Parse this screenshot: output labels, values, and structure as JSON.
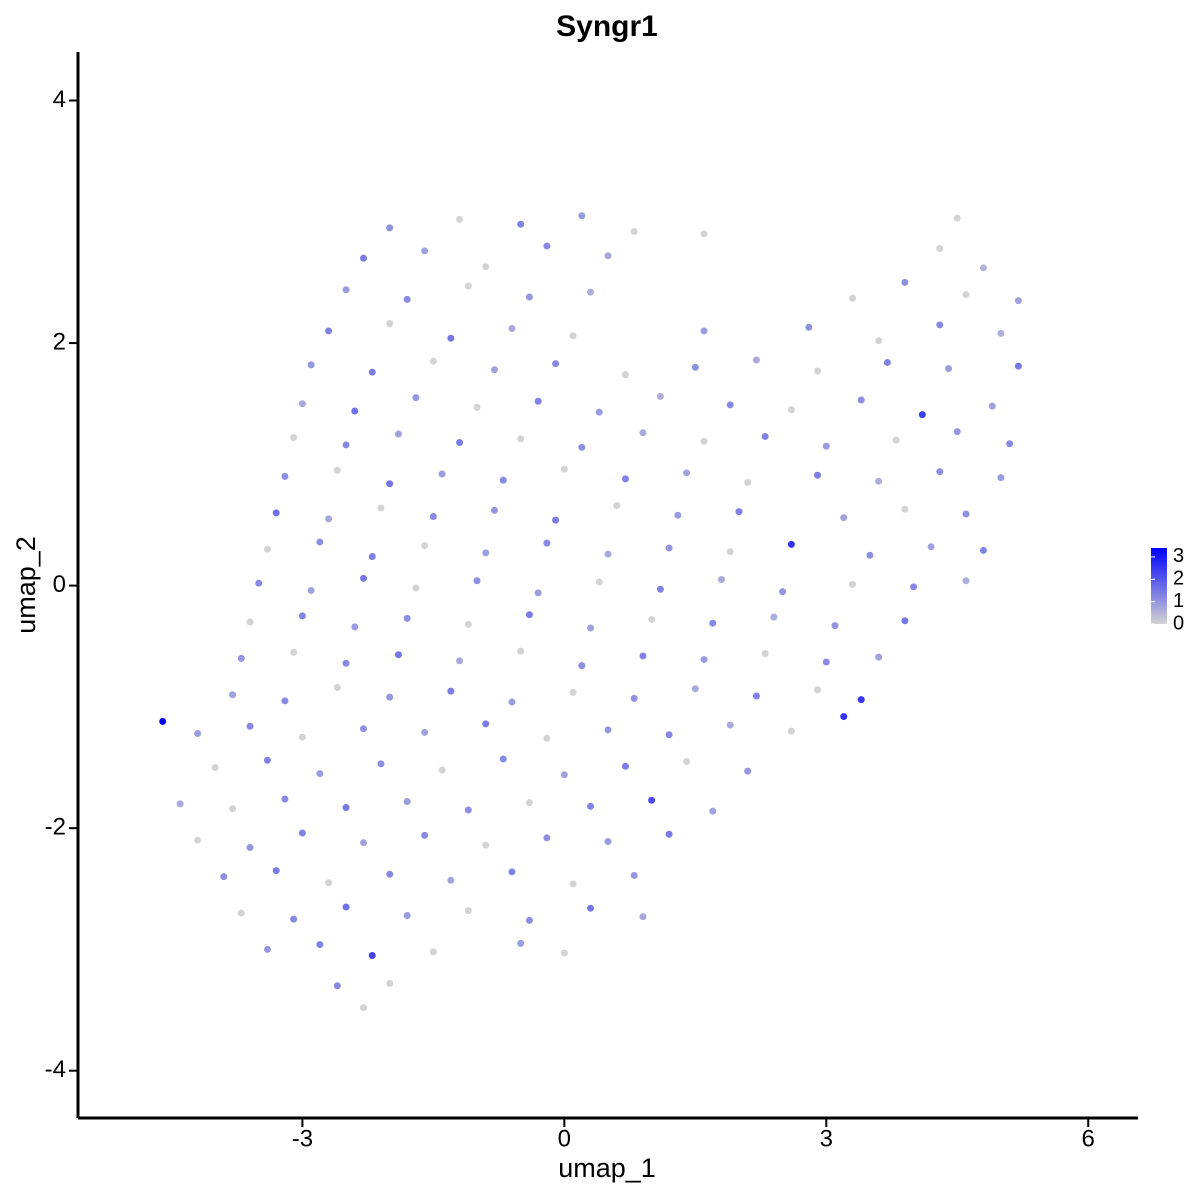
{
  "chart_data": {
    "type": "scatter",
    "title": "Syngr1",
    "x_label": "umap_1",
    "y_label": "umap_2",
    "xlim": [
      -5.57,
      6.57
    ],
    "ylim": [
      -4.39,
      4.4
    ],
    "xticks": [
      -3,
      0,
      3,
      6
    ],
    "yticks": [
      -4,
      -2,
      0,
      2,
      4
    ],
    "color_low": "#d3d3d3",
    "color_high": "#0000ff",
    "color_lim": [
      0,
      3.4
    ],
    "color_ticks": [
      0,
      1,
      2,
      3
    ],
    "x": [
      -2,
      -1.2,
      -0.5,
      0.2,
      0.8,
      4.5,
      -2.3,
      -1.6,
      -0.9,
      -0.2,
      0.5,
      1.6,
      4.3,
      4.8,
      -2.5,
      -1.8,
      -1.1,
      -0.4,
      0.3,
      3.3,
      3.9,
      4.6,
      5.2,
      -2.7,
      -2.0,
      -1.3,
      -0.6,
      0.1,
      1.6,
      2.8,
      3.6,
      4.3,
      5.0,
      -2.9,
      -2.2,
      -1.5,
      -0.8,
      -0.1,
      0.7,
      1.5,
      2.2,
      2.9,
      3.7,
      4.4,
      5.2,
      -3.0,
      -2.4,
      -1.7,
      -1.0,
      -0.3,
      0.4,
      1.1,
      1.9,
      2.6,
      3.4,
      4.1,
      4.9,
      -3.1,
      -2.5,
      -1.9,
      -1.2,
      -0.5,
      0.2,
      0.9,
      1.6,
      2.3,
      3.0,
      3.8,
      4.5,
      5.1,
      -3.2,
      -2.6,
      -2.0,
      -1.4,
      -0.7,
      0.0,
      0.7,
      1.4,
      2.1,
      2.9,
      3.6,
      4.3,
      5.0,
      -3.3,
      -2.7,
      -2.1,
      -1.5,
      -0.8,
      -0.1,
      0.6,
      1.3,
      2.0,
      3.2,
      3.9,
      4.6,
      -3.4,
      -2.8,
      -2.2,
      -1.6,
      -0.9,
      -0.2,
      0.5,
      1.2,
      1.9,
      2.6,
      3.5,
      4.2,
      4.8,
      -3.5,
      -2.9,
      -2.3,
      -1.7,
      -1.0,
      -0.3,
      0.4,
      1.1,
      1.8,
      2.5,
      3.3,
      4.0,
      4.6,
      -3.6,
      -3.0,
      -2.4,
      -1.8,
      -1.1,
      -0.4,
      0.3,
      1.0,
      1.7,
      2.4,
      3.1,
      3.9,
      -3.7,
      -3.1,
      -2.5,
      -1.9,
      -1.2,
      -0.5,
      0.2,
      0.9,
      1.6,
      2.3,
      3.0,
      3.6,
      -3.8,
      -3.2,
      -2.6,
      -2.0,
      -1.3,
      -0.6,
      0.1,
      0.8,
      1.5,
      2.2,
      2.9,
      3.4,
      -4.6,
      -4.2,
      -3.6,
      -3.0,
      -2.3,
      -1.6,
      -0.9,
      -0.2,
      0.5,
      1.2,
      1.9,
      2.6,
      3.2,
      -4.0,
      -3.4,
      -2.8,
      -2.1,
      -1.4,
      -0.7,
      0.0,
      0.7,
      1.4,
      2.1,
      -4.4,
      -3.8,
      -3.2,
      -2.5,
      -1.8,
      -1.1,
      -0.4,
      0.3,
      1.0,
      1.7,
      -4.2,
      -3.6,
      -3.0,
      -2.3,
      -1.6,
      -0.9,
      -0.2,
      0.5,
      1.2,
      -3.9,
      -3.3,
      -2.7,
      -2.0,
      -1.3,
      -0.6,
      0.1,
      0.8,
      -3.7,
      -3.1,
      -2.5,
      -1.8,
      -1.1,
      -0.4,
      0.3,
      0.9,
      -3.4,
      -2.8,
      -2.2,
      -1.5,
      -0.5,
      0.0,
      -2.6,
      -2.0,
      -2.3
    ],
    "values": [
      2.95,
      3.02,
      2.98,
      3.05,
      2.92,
      3.03,
      2.7,
      2.76,
      2.63,
      2.8,
      2.72,
      2.9,
      2.78,
      2.62,
      2.44,
      2.36,
      2.47,
      2.38,
      2.42,
      2.37,
      2.5,
      2.4,
      2.35,
      2.1,
      2.16,
      2.04,
      2.12,
      2.06,
      2.1,
      2.13,
      2.02,
      2.15,
      2.08,
      1.82,
      1.76,
      1.85,
      1.78,
      1.83,
      1.74,
      1.8,
      1.86,
      1.77,
      1.84,
      1.79,
      1.81,
      1.5,
      1.44,
      1.55,
      1.47,
      1.52,
      1.43,
      1.56,
      1.49,
      1.45,
      1.53,
      1.41,
      1.48,
      1.22,
      1.16,
      1.25,
      1.18,
      1.21,
      1.14,
      1.26,
      1.19,
      1.23,
      1.15,
      1.2,
      1.27,
      1.17,
      0.9,
      0.95,
      0.84,
      0.92,
      0.87,
      0.96,
      0.88,
      0.93,
      0.85,
      0.91,
      0.86,
      0.94,
      0.89,
      0.6,
      0.55,
      0.64,
      0.57,
      0.62,
      0.54,
      0.66,
      0.58,
      0.61,
      0.56,
      0.63,
      0.59,
      0.3,
      0.36,
      0.24,
      0.33,
      0.27,
      0.35,
      0.26,
      0.31,
      0.28,
      0.34,
      0.25,
      0.32,
      0.29,
      0.02,
      -0.04,
      0.06,
      -0.02,
      0.04,
      -0.06,
      0.03,
      -0.03,
      0.05,
      -0.05,
      0.01,
      -0.01,
      0.04,
      -0.3,
      -0.25,
      -0.34,
      -0.27,
      -0.32,
      -0.24,
      -0.35,
      -0.28,
      -0.31,
      -0.26,
      -0.33,
      -0.29,
      -0.6,
      -0.55,
      -0.64,
      -0.57,
      -0.62,
      -0.54,
      -0.66,
      -0.58,
      -0.61,
      -0.56,
      -0.63,
      -0.59,
      -0.9,
      -0.95,
      -0.84,
      -0.92,
      -0.87,
      -0.96,
      -0.88,
      -0.93,
      -0.85,
      -0.91,
      -0.86,
      -0.94,
      -1.12,
      -1.22,
      -1.16,
      -1.25,
      -1.18,
      -1.21,
      -1.14,
      -1.26,
      -1.19,
      -1.23,
      -1.15,
      -1.2,
      -1.08,
      -1.5,
      -1.44,
      -1.55,
      -1.47,
      -1.52,
      -1.43,
      -1.56,
      -1.49,
      -1.45,
      -1.53,
      -1.8,
      -1.84,
      -1.76,
      -1.83,
      -1.78,
      -1.85,
      -1.79,
      -1.82,
      -1.77,
      -1.86,
      -2.1,
      -2.16,
      -2.04,
      -2.12,
      -2.06,
      -2.14,
      -2.08,
      -2.11,
      -2.05,
      -2.4,
      -2.35,
      -2.45,
      -2.38,
      -2.43,
      -2.36,
      -2.46,
      -2.39,
      -2.7,
      -2.75,
      -2.65,
      -2.72,
      -2.68,
      -2.76,
      -2.66,
      -2.73,
      -3.0,
      -2.96,
      -3.05,
      -3.02,
      -2.95,
      -3.03,
      -3.3,
      -3.28,
      -3.48
    ],
    "color_values": [
      1.1,
      0,
      1.3,
      0.9,
      0,
      0,
      1.4,
      0.8,
      0,
      1.2,
      0.7,
      0,
      0,
      0.5,
      0.9,
      1.2,
      0,
      1.0,
      0.6,
      0,
      1.1,
      0,
      0.8,
      1.3,
      0,
      1.5,
      0.7,
      0,
      0.9,
      1.1,
      0,
      1.2,
      0.6,
      1.0,
      1.4,
      0,
      0.8,
      1.2,
      0,
      1.1,
      0.7,
      0,
      1.3,
      0.9,
      1.5,
      0.7,
      1.6,
      1.0,
      0,
      1.3,
      0.9,
      0.6,
      1.2,
      0,
      1.1,
      2.4,
      0.8,
      0,
      1.2,
      0.8,
      1.4,
      0,
      1.1,
      0.7,
      0,
      1.3,
      0.9,
      0,
      1.0,
      1.2,
      1.1,
      0,
      1.5,
      0.9,
      1.2,
      0,
      1.3,
      0.8,
      0,
      1.4,
      0.6,
      1.1,
      0.9,
      1.6,
      0.7,
      0,
      1.2,
      1.0,
      1.4,
      0,
      0.9,
      1.3,
      0.8,
      0,
      1.1,
      0,
      1.1,
      1.4,
      0,
      0.9,
      1.2,
      0.7,
      1.0,
      0,
      2.6,
      1.1,
      0.8,
      1.3,
      1.2,
      0.8,
      1.5,
      0,
      1.1,
      0.9,
      0,
      1.3,
      0.7,
      1.0,
      0,
      1.2,
      0.6,
      0,
      1.3,
      0.9,
      1.1,
      0,
      1.4,
      0.8,
      0,
      1.2,
      0.6,
      1.0,
      1.5,
      1.0,
      0,
      1.2,
      1.5,
      0.7,
      0,
      1.1,
      1.3,
      0.9,
      0,
      1.2,
      0.8,
      0.8,
      1.2,
      0,
      1.0,
      1.4,
      0.9,
      0,
      1.1,
      0.7,
      1.3,
      0,
      2.5,
      3.4,
      0.9,
      1.2,
      0,
      1.1,
      0.8,
      1.4,
      0,
      1.0,
      1.2,
      0.7,
      0,
      2.6,
      0,
      1.3,
      0.9,
      1.1,
      0,
      1.2,
      0.8,
      1.4,
      0,
      1.0,
      0.7,
      0,
      1.2,
      1.5,
      0.9,
      1.1,
      0,
      1.3,
      2.2,
      0.8,
      0,
      1.0,
      1.3,
      0.8,
      1.2,
      0,
      1.1,
      0.9,
      1.4,
      1.1,
      1.4,
      0,
      1.2,
      0.8,
      1.3,
      0,
      1.0,
      0,
      1.2,
      1.6,
      0.9,
      0,
      1.1,
      1.5,
      0.7,
      1.0,
      1.3,
      2.3,
      0,
      0.9,
      0,
      1.2,
      0,
      0
    ]
  }
}
